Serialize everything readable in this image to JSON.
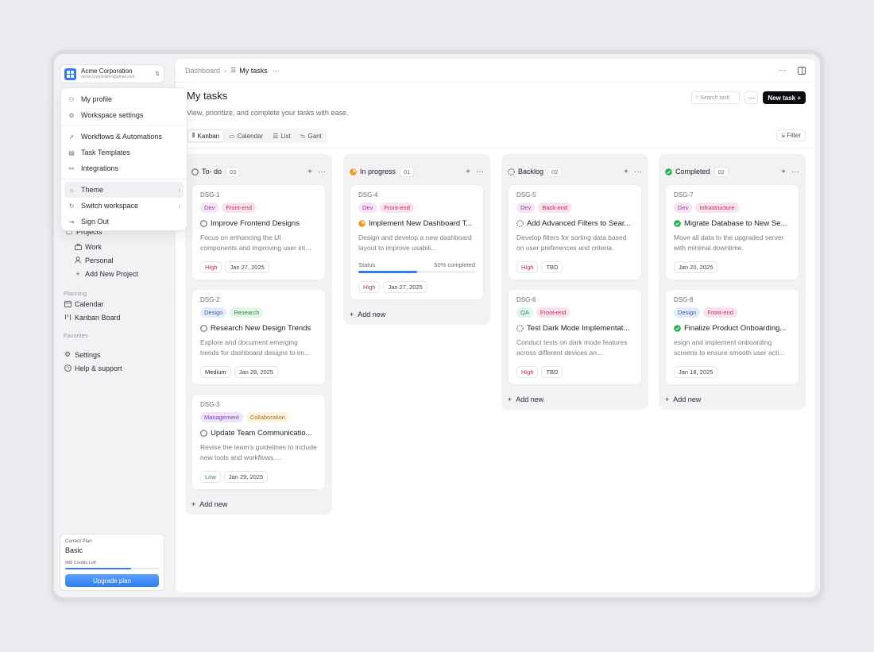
{
  "workspace": {
    "name": "Acme Corporation",
    "email": "acme.Corporation@gmail.com"
  },
  "menu": {
    "items": [
      {
        "label": "My profile",
        "icon": "user-icon"
      },
      {
        "label": "Workspace settings",
        "icon": "gear-icon"
      },
      {
        "label": "Workflows & Automations",
        "icon": "rocket-icon"
      },
      {
        "label": "Task Templates",
        "icon": "template-icon"
      },
      {
        "label": "Integrations",
        "icon": "integration-icon"
      },
      {
        "label": "Theme",
        "icon": "sun-icon"
      },
      {
        "label": "Switch workspace",
        "icon": "switch-icon"
      },
      {
        "label": "Sign Out",
        "icon": "sign-out-icon"
      }
    ]
  },
  "sidebar": {
    "projects_label": "Projects",
    "project_items": [
      "Work",
      "Personal",
      "Add New Project"
    ],
    "planning_label": "Planning",
    "planning_items": [
      "Calendar",
      "Kanban Board"
    ],
    "favorites_label": "Favorites",
    "bottom_items": [
      "Settings",
      "Help & support"
    ],
    "plan": {
      "caption": "Current Plan",
      "name": "Basic",
      "credits": "988 Credits Left",
      "credit_fraction": 0.7,
      "button": "Upgrade plan"
    }
  },
  "breadcrumb": {
    "root": "Dashboard",
    "current": "My tasks"
  },
  "header": {
    "title": "My tasks",
    "subtitle": "View, prioritize, and complete your tasks with ease.",
    "search_placeholder": "Search task",
    "new_task": "New task +",
    "filter": "Filter"
  },
  "views": [
    "Kanban",
    "Calendar",
    "List",
    "Gant"
  ],
  "add_new_label": "Add new",
  "colors": {
    "accent": "#2f7cf6",
    "primary_btn": "#0e0e12",
    "completed": "#22b14c",
    "in_progress": "#f29a1a"
  },
  "columns": [
    {
      "title": "To- do",
      "count": "03",
      "status": "todo",
      "cards": [
        {
          "id": "DSG-1",
          "tags": [
            "Dev",
            "Front-end"
          ],
          "title": "Improve Frontend Designs",
          "desc": "Focus on enhancing the UI components and improving user int...",
          "priority": "High",
          "date": "Jan 27, 2025"
        },
        {
          "id": "DSG-2",
          "tags": [
            "Design",
            "Research"
          ],
          "title": "Research New Design Trends",
          "desc": "Explore and document emerging trends for dashboard designs to im...",
          "priority": "Medium",
          "date": "Jan 28, 2025"
        },
        {
          "id": "DSG-3",
          "tags": [
            "Management",
            "Collaboration"
          ],
          "title": "Update Team Communicatio...",
          "desc": "Revise the team's guidelines to include new tools and workflows....",
          "priority": "Low",
          "date": "Jan 29, 2025"
        }
      ]
    },
    {
      "title": "In progress",
      "count": "01",
      "status": "progress",
      "cards": [
        {
          "id": "DSG-4",
          "tags": [
            "Dev",
            "Front-end"
          ],
          "title": "Implement New Dashboard T...",
          "desc": "Design and develop a new dashboard layout to improve usabili...",
          "progress_label": "Status",
          "progress_text": "50% completed",
          "progress": 0.5,
          "priority": "High",
          "date": "Jan 27, 2025"
        }
      ]
    },
    {
      "title": "Backlog",
      "count": "02",
      "status": "backlog",
      "cards": [
        {
          "id": "DSG-5",
          "tags": [
            "Dev",
            "Back-end"
          ],
          "title": "Add Advanced Filters to Sear...",
          "desc": "Develop filters for sorting data based on user preferences and criteria.",
          "priority": "High",
          "date": "TBD"
        },
        {
          "id": "DSG-6",
          "tags": [
            "QA",
            "Front-end"
          ],
          "title": "Test Dark Mode Implementat...",
          "desc": "Conduct tests on dark mode features across different devices an...",
          "priority": "High",
          "date": "TBD"
        }
      ]
    },
    {
      "title": "Completed",
      "count": "02",
      "status": "done",
      "cards": [
        {
          "id": "DSG-7",
          "tags": [
            "Dev",
            "Infrastructure"
          ],
          "title": "Migrate Database to New Se...",
          "desc": "Move all data to the upgraded server with minimal downtime.",
          "date": "Jan 20, 2025"
        },
        {
          "id": "DSG-8",
          "tags": [
            "Design",
            "Front-end"
          ],
          "title": "Finalize Product Onboarding...",
          "desc": "esign and implement onboarding screens to ensure smooth user acti...",
          "date": "Jan 18, 2025"
        }
      ]
    }
  ],
  "tag_colors": {
    "Dev": [
      "#f6e3f6",
      "#9b3aa0"
    ],
    "Front-end": [
      "#fbe1ec",
      "#b8306a"
    ],
    "Back-end": [
      "#fbe1ec",
      "#b8306a"
    ],
    "Design": [
      "#e4ecfb",
      "#3560b0"
    ],
    "Research": [
      "#e2f5e7",
      "#2f8a4a"
    ],
    "Management": [
      "#eee3fa",
      "#7b3fb5"
    ],
    "Collaboration": [
      "#fdf2dc",
      "#a5721a"
    ],
    "QA": [
      "#e0f5ee",
      "#2a8a69"
    ],
    "Infrastructure": [
      "#fbe1ec",
      "#b8306a"
    ]
  },
  "priority_colors": {
    "High": "#c0334a",
    "Medium": "#2a2a30",
    "Low": "#2f8a4a"
  }
}
